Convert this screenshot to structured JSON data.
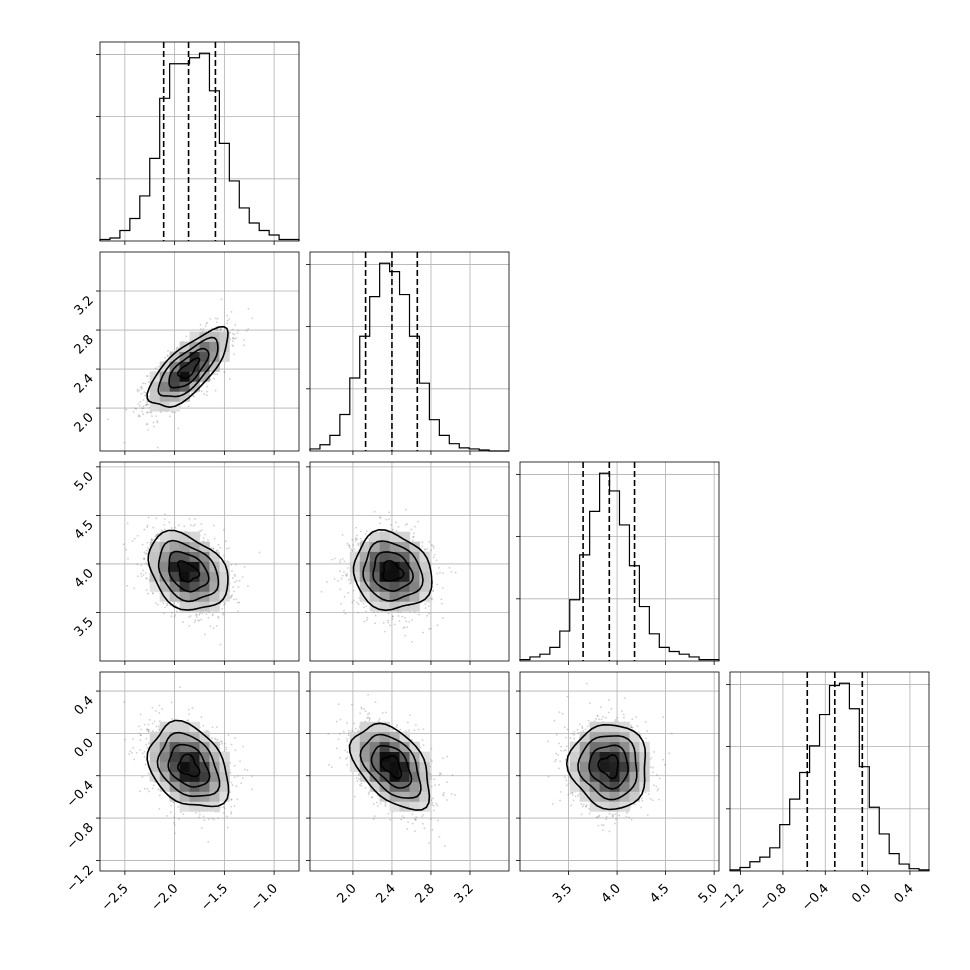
{
  "chart_data": {
    "type": "corner",
    "grid": true,
    "params": [
      {
        "range": [
          -2.75,
          -0.75
        ],
        "ticks": [
          -2.5,
          -2.0,
          -1.5,
          -1.0
        ],
        "tick_labels": [
          "−2.5",
          "−2.0",
          "−1.5",
          "−1.0"
        ],
        "quantiles": [
          -2.11,
          -1.86,
          -1.59
        ],
        "hist_edges": [
          -2.75,
          -2.65,
          -2.55,
          -2.45,
          -2.35,
          -2.25,
          -2.15,
          -2.05,
          -1.95,
          -1.85,
          -1.75,
          -1.65,
          -1.55,
          -1.45,
          -1.35,
          -1.25,
          -1.15,
          -1.05,
          -0.95,
          -0.85,
          -0.75
        ],
        "hist_counts": [
          1,
          2,
          7,
          15,
          30,
          55,
          95,
          118,
          118,
          122,
          125,
          100,
          65,
          40,
          22,
          12,
          7,
          4,
          1,
          1
        ]
      },
      {
        "range": [
          1.56,
          3.6
        ],
        "ticks": [
          2.0,
          2.4,
          2.8,
          3.2
        ],
        "tick_labels": [
          "2.0",
          "2.4",
          "2.8",
          "3.2"
        ],
        "quantiles": [
          2.13,
          2.4,
          2.66
        ],
        "hist_edges": [
          1.56,
          1.662,
          1.764,
          1.866,
          1.968,
          2.07,
          2.172,
          2.274,
          2.376,
          2.478,
          2.58,
          2.682,
          2.784,
          2.886,
          2.988,
          3.09,
          3.192,
          3.294,
          3.396,
          3.498,
          3.6
        ],
        "hist_counts": [
          2,
          6,
          15,
          35,
          70,
          110,
          148,
          180,
          172,
          150,
          110,
          65,
          30,
          15,
          7,
          3,
          2,
          1,
          0,
          0
        ]
      },
      {
        "range": [
          3.0,
          5.05
        ],
        "ticks": [
          3.5,
          4.0,
          4.5,
          5.0
        ],
        "tick_labels": [
          "3.5",
          "4.0",
          "4.5",
          "5.0"
        ],
        "quantiles": [
          3.65,
          3.92,
          4.18
        ],
        "hist_edges": [
          3.0,
          3.1025,
          3.205,
          3.3075,
          3.41,
          3.5125,
          3.615,
          3.7175,
          3.82,
          3.9225,
          4.025,
          4.1275,
          4.23,
          4.3325,
          4.435,
          4.5375,
          4.64,
          4.7425,
          4.845,
          4.9475,
          5.05
        ],
        "hist_counts": [
          1,
          3,
          5,
          10,
          22,
          45,
          78,
          110,
          138,
          125,
          100,
          70,
          40,
          20,
          10,
          7,
          5,
          3,
          1,
          1
        ]
      },
      {
        "range": [
          -1.3,
          0.58
        ],
        "ticks": [
          -1.2,
          -0.8,
          -0.4,
          0.0,
          0.4
        ],
        "tick_labels": [
          "−1.2",
          "−0.8",
          "−0.4",
          "0.0",
          "0.4"
        ],
        "quantiles": [
          -0.57,
          -0.31,
          -0.05
        ],
        "hist_edges": [
          -1.3,
          -1.206,
          -1.112,
          -1.018,
          -0.924,
          -0.83,
          -0.736,
          -0.642,
          -0.548,
          -0.454,
          -0.36,
          -0.266,
          -0.172,
          -0.078,
          0.016,
          0.11,
          0.204,
          0.298,
          0.392,
          0.486,
          0.58
        ],
        "hist_counts": [
          1,
          3,
          8,
          12,
          20,
          40,
          62,
          85,
          108,
          135,
          160,
          162,
          140,
          90,
          55,
          32,
          15,
          6,
          2,
          1
        ]
      }
    ],
    "pairs": [
      {
        "row": 1,
        "col": 0,
        "mean": [
          -1.86,
          2.4
        ],
        "sd": [
          0.2,
          0.2
        ],
        "corr": 0.72
      },
      {
        "row": 2,
        "col": 0,
        "mean": [
          -1.87,
          3.92
        ],
        "sd": [
          0.2,
          0.2
        ],
        "corr": -0.3
      },
      {
        "row": 2,
        "col": 1,
        "mean": [
          2.4,
          3.92
        ],
        "sd": [
          0.2,
          0.2
        ],
        "corr": -0.12
      },
      {
        "row": 3,
        "col": 0,
        "mean": [
          -1.86,
          -0.31
        ],
        "sd": [
          0.2,
          0.2
        ],
        "corr": -0.3
      },
      {
        "row": 3,
        "col": 1,
        "mean": [
          2.4,
          -0.31
        ],
        "sd": [
          0.2,
          0.2
        ],
        "corr": -0.45
      },
      {
        "row": 3,
        "col": 2,
        "mean": [
          3.92,
          -0.31
        ],
        "sd": [
          0.2,
          0.2
        ],
        "corr": -0.05
      }
    ],
    "colors": {
      "frame": "#000000",
      "grid": "#b0b0b0",
      "samples": "#777777",
      "lines": "#000000"
    }
  }
}
